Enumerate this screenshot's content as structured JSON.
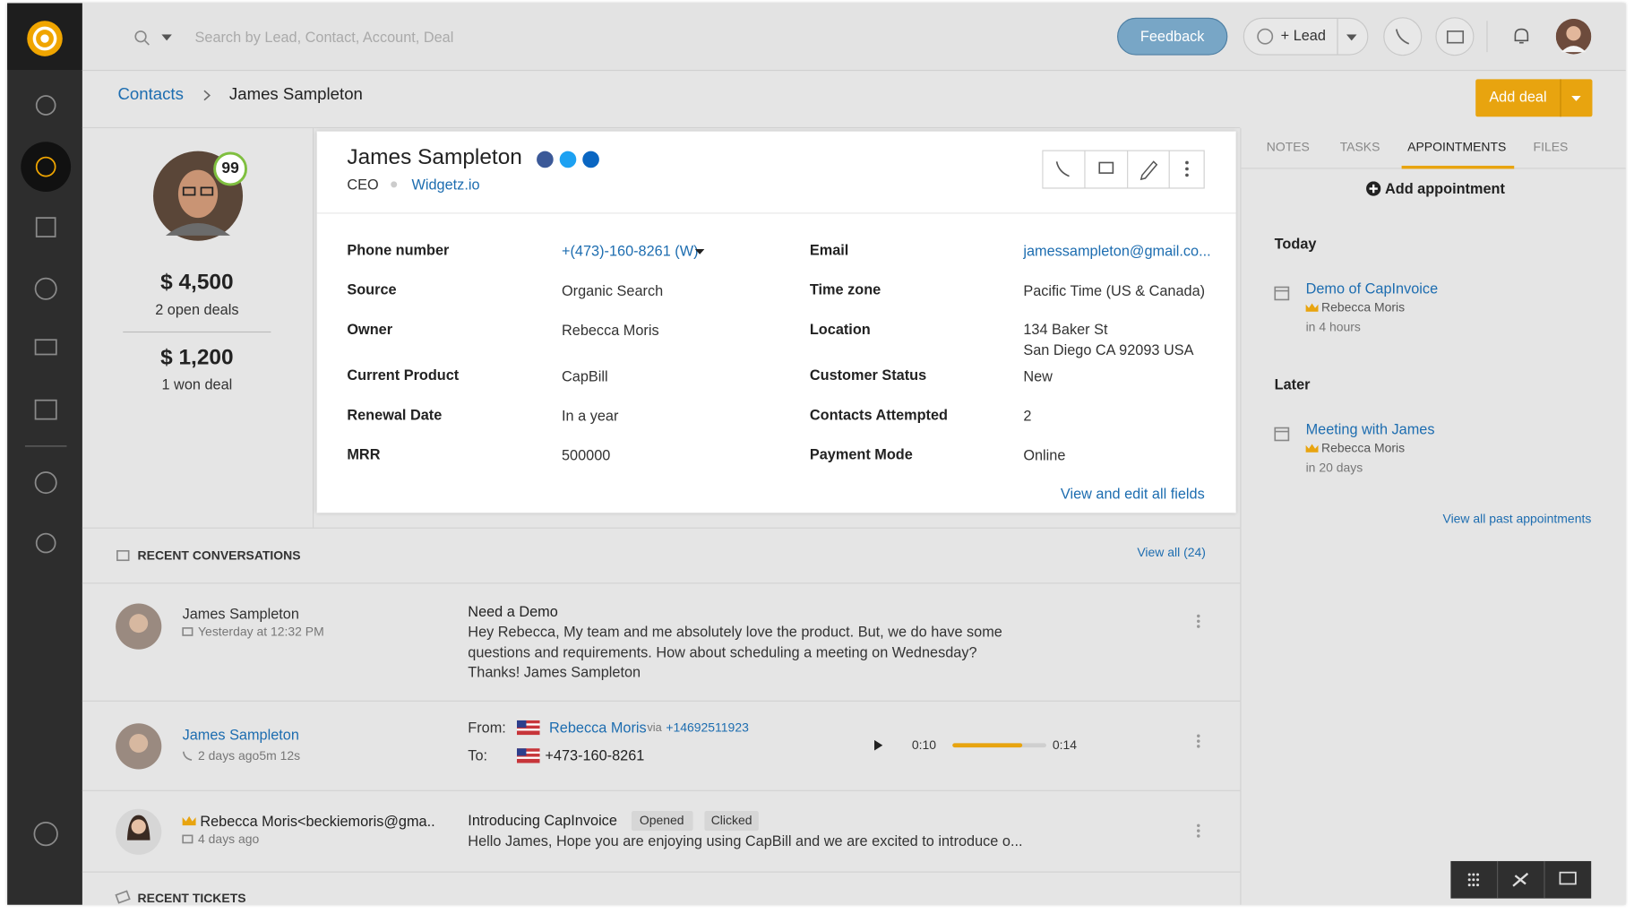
{
  "search": {
    "placeholder": "Search by Lead, Contact, Account, Deal"
  },
  "topbar": {
    "feedback": "Feedback",
    "lead": "+ Lead"
  },
  "breadcrumb": {
    "parent": "Contacts",
    "current": "James Sampleton"
  },
  "add_deal": "Add deal",
  "summary": {
    "score": 99,
    "open_amount": "$ 4,500",
    "open_label": "2 open deals",
    "won_amount": "$ 1,200",
    "won_label": "1 won deal"
  },
  "contact": {
    "name": "James Sampleton",
    "title": "CEO",
    "company": "Widgetz.io",
    "left": [
      {
        "label": "Phone number",
        "value": "+(473)-160-8261 (W)"
      },
      {
        "label": "Source",
        "value": "Organic Search"
      },
      {
        "label": "Owner",
        "value": "Rebecca Moris"
      },
      {
        "label": "Current Product",
        "value": "CapBill"
      },
      {
        "label": "Renewal Date",
        "value": "In a year"
      },
      {
        "label": "MRR",
        "value": "500000"
      }
    ],
    "right": [
      {
        "label": "Email",
        "value": "jamessampleton@gmail.co..."
      },
      {
        "label": "Time zone",
        "value": "Pacific Time (US & Canada)"
      },
      {
        "label": "Location",
        "value": [
          "134 Baker St",
          "San Diego CA 92093 USA"
        ]
      },
      {
        "label": "Customer Status",
        "value": "New"
      },
      {
        "label": "Contacts Attempted",
        "value": "2"
      },
      {
        "label": "Payment Mode",
        "value": "Online"
      }
    ],
    "view_all": "View and edit all fields"
  },
  "tabs": [
    "NOTES",
    "TASKS",
    "APPOINTMENTS",
    "FILES"
  ],
  "add_appointment": "Add appointment",
  "appointments": [
    {
      "label": "Today",
      "items": [
        {
          "title": "Demo of CapInvoice",
          "owner": "Rebecca Moris",
          "when": "in 4 hours"
        }
      ]
    },
    {
      "label": "Later",
      "items": [
        {
          "title": "Meeting with James",
          "owner": "Rebecca Moris",
          "when": "in 20 days"
        }
      ]
    }
  ],
  "view_past": "View all past appointments",
  "conversations": {
    "title": "RECENT CONVERSATIONS",
    "view_all": "View all (24)",
    "email": {
      "name": "James Sampleton",
      "meta": "Yesterday at 12:32 PM",
      "subject": "Need a Demo",
      "body": [
        "Hey Rebecca, My team and me absolutely love the product. But, we do have some",
        "questions and requirements. How about scheduling a meeting on Wednesday?",
        "Thanks! James Sampleton"
      ]
    },
    "call": {
      "name": "James Sampleton",
      "meta": "2 days ago5m 12s",
      "from_label": "From:",
      "from_name": "Rebecca Moris",
      "via": "via",
      "via_number": "+14692511923",
      "to_label": "To:",
      "to_number": "+473-160-8261",
      "start": "0:10",
      "end": "0:14"
    },
    "sent": {
      "name": "Rebecca Moris<beckiemoris@gma..",
      "meta": "4 days ago",
      "subject": "Introducing CapInvoice",
      "tags": [
        "Opened",
        "Clicked"
      ],
      "body": "Hello James, Hope you are enjoying using CapBill and we are excited to introduce o..."
    }
  },
  "recent_tickets": "RECENT TICKETS"
}
